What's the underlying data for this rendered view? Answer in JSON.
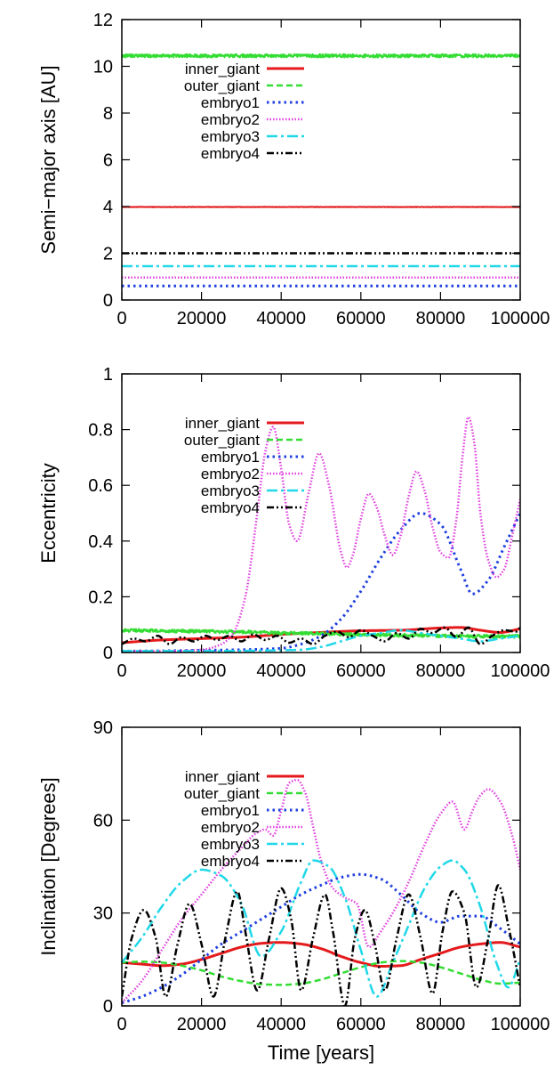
{
  "chart_data": [
    {
      "type": "line",
      "ylabel": "Semi−major axis [AU]",
      "xlabel": "",
      "xlim": [
        0,
        100000
      ],
      "ylim": [
        0,
        12
      ],
      "xticks": [
        0,
        20000,
        40000,
        60000,
        80000,
        100000
      ],
      "xtick_labels": [
        "0",
        "20000",
        "40000",
        "60000",
        "80000",
        "100000"
      ],
      "yticks": [
        0,
        2,
        4,
        6,
        8,
        10,
        12
      ],
      "ytick_labels": [
        "0",
        "2",
        "4",
        "6",
        "8",
        "10",
        "12"
      ],
      "legend_position": "top-left",
      "series": [
        {
          "name": "inner_giant",
          "color": "#e41a1c",
          "dash": "solid",
          "noise": 0.01,
          "x": [
            0,
            100000
          ],
          "y": [
            3.98,
            3.98
          ]
        },
        {
          "name": "outer_giant",
          "color": "#33dd33",
          "dash": "dashed",
          "noise": 0.07,
          "x": [
            0,
            100000
          ],
          "y": [
            10.45,
            10.45
          ]
        },
        {
          "name": "embryo1",
          "color": "#1f3fe0",
          "dash": "dotted",
          "noise": 0,
          "x": [
            0,
            100000
          ],
          "y": [
            0.6,
            0.6
          ]
        },
        {
          "name": "embryo2",
          "color": "#e040e0",
          "dash": "dotted-fine",
          "noise": 0,
          "x": [
            0,
            100000
          ],
          "y": [
            0.96,
            0.96
          ]
        },
        {
          "name": "embryo3",
          "color": "#20d8e8",
          "dash": "dashdot",
          "noise": 0,
          "x": [
            0,
            100000
          ],
          "y": [
            1.45,
            1.45
          ]
        },
        {
          "name": "embryo4",
          "color": "#000000",
          "dash": "dashdotdot",
          "noise": 0,
          "x": [
            0,
            100000
          ],
          "y": [
            2.0,
            2.0
          ]
        }
      ]
    },
    {
      "type": "line",
      "ylabel": "Eccentricity",
      "xlabel": "",
      "xlim": [
        0,
        100000
      ],
      "ylim": [
        0,
        1
      ],
      "xticks": [
        0,
        20000,
        40000,
        60000,
        80000,
        100000
      ],
      "xtick_labels": [
        "0",
        "20000",
        "40000",
        "60000",
        "80000",
        "100000"
      ],
      "yticks": [
        0,
        0.2,
        0.4,
        0.6,
        0.8,
        1
      ],
      "ytick_labels": [
        "0",
        "0.2",
        "0.4",
        "0.6",
        "0.8",
        "1"
      ],
      "legend_position": "top-left",
      "series": [
        {
          "name": "inner_giant",
          "color": "#e41a1c",
          "dash": "solid",
          "noise": 0,
          "x": [
            0,
            10000,
            20000,
            30000,
            40000,
            50000,
            60000,
            70000,
            80000,
            85000,
            90000,
            95000,
            100000
          ],
          "y": [
            0.035,
            0.045,
            0.05,
            0.055,
            0.065,
            0.072,
            0.078,
            0.08,
            0.088,
            0.09,
            0.08,
            0.072,
            0.085
          ]
        },
        {
          "name": "outer_giant",
          "color": "#33dd33",
          "dash": "dashed",
          "noise": 0.006,
          "x": [
            0,
            10000,
            20000,
            30000,
            40000,
            50000,
            60000,
            70000,
            80000,
            90000,
            100000
          ],
          "y": [
            0.08,
            0.078,
            0.076,
            0.074,
            0.07,
            0.068,
            0.064,
            0.062,
            0.06,
            0.058,
            0.058
          ]
        },
        {
          "name": "embryo1",
          "color": "#1f3fe0",
          "dash": "dotted",
          "noise": 0,
          "x": [
            0,
            10000,
            20000,
            30000,
            40000,
            45000,
            50000,
            55000,
            60000,
            65000,
            70000,
            75000,
            80000,
            85000,
            88000,
            92000,
            96000,
            100000
          ],
          "y": [
            0.005,
            0.006,
            0.008,
            0.01,
            0.015,
            0.03,
            0.06,
            0.12,
            0.22,
            0.34,
            0.44,
            0.5,
            0.46,
            0.3,
            0.21,
            0.26,
            0.38,
            0.5
          ]
        },
        {
          "name": "embryo2",
          "color": "#e040e0",
          "dash": "dotted-fine",
          "noise": 0,
          "x": [
            0,
            10000,
            20000,
            25000,
            28000,
            31000,
            34000,
            36000,
            38000,
            40000,
            42000,
            44000,
            47000,
            49500,
            52000,
            55000,
            56500,
            58000,
            60000,
            62000,
            64000,
            66000,
            68000,
            70000,
            72000,
            74000,
            76000,
            78000,
            80000,
            82000,
            84000,
            85500,
            87000,
            88500,
            90000,
            92000,
            94000,
            96000,
            98000,
            100000
          ],
          "y": [
            0.005,
            0.005,
            0.01,
            0.03,
            0.07,
            0.2,
            0.5,
            0.72,
            0.81,
            0.66,
            0.46,
            0.4,
            0.58,
            0.715,
            0.6,
            0.36,
            0.305,
            0.35,
            0.48,
            0.57,
            0.52,
            0.42,
            0.35,
            0.42,
            0.56,
            0.65,
            0.58,
            0.45,
            0.36,
            0.34,
            0.48,
            0.7,
            0.845,
            0.75,
            0.5,
            0.33,
            0.27,
            0.3,
            0.42,
            0.55
          ]
        },
        {
          "name": "embryo3",
          "color": "#20d8e8",
          "dash": "dashdot",
          "noise": 0,
          "x": [
            0,
            10000,
            20000,
            30000,
            40000,
            45000,
            50000,
            55000,
            60000,
            65000,
            70000,
            75000,
            80000,
            85000,
            90000,
            95000,
            100000
          ],
          "y": [
            0.005,
            0.005,
            0.005,
            0.006,
            0.008,
            0.01,
            0.02,
            0.04,
            0.06,
            0.07,
            0.08,
            0.07,
            0.06,
            0.05,
            0.04,
            0.05,
            0.06
          ]
        },
        {
          "name": "embryo4",
          "color": "#000000",
          "dash": "dashdotdot",
          "noise": 0,
          "x": [
            0,
            3000,
            6000,
            9000,
            12000,
            15000,
            18000,
            21000,
            24000,
            27000,
            30000,
            33000,
            36000,
            39000,
            42000,
            45000,
            48000,
            51000,
            54000,
            57000,
            60000,
            63000,
            66000,
            69000,
            72000,
            75000,
            78000,
            81000,
            84000,
            87000,
            90000,
            93000,
            96000,
            99000,
            100000
          ],
          "y": [
            0.03,
            0.05,
            0.04,
            0.06,
            0.03,
            0.055,
            0.04,
            0.06,
            0.045,
            0.06,
            0.04,
            0.065,
            0.045,
            0.06,
            0.035,
            0.05,
            0.03,
            0.06,
            0.075,
            0.055,
            0.08,
            0.06,
            0.04,
            0.07,
            0.05,
            0.085,
            0.07,
            0.09,
            0.055,
            0.09,
            0.03,
            0.06,
            0.08,
            0.075,
            0.09
          ]
        }
      ]
    },
    {
      "type": "line",
      "ylabel": "Inclination [Degrees]",
      "xlabel": "Time [years]",
      "xlim": [
        0,
        100000
      ],
      "ylim": [
        0,
        90
      ],
      "xticks": [
        0,
        20000,
        40000,
        60000,
        80000,
        100000
      ],
      "xtick_labels": [
        "0",
        "20000",
        "40000",
        "60000",
        "80000",
        "100000"
      ],
      "yticks": [
        0,
        30,
        60,
        90
      ],
      "ytick_labels": [
        "0",
        "30",
        "60",
        "90"
      ],
      "legend_position": "top-left",
      "series": [
        {
          "name": "inner_giant",
          "color": "#e41a1c",
          "dash": "solid",
          "noise": 0,
          "x": [
            0,
            5000,
            10000,
            15000,
            20000,
            25000,
            30000,
            35000,
            40000,
            45000,
            50000,
            55000,
            60000,
            65000,
            70000,
            75000,
            80000,
            85000,
            90000,
            95000,
            100000
          ],
          "y": [
            14,
            13.5,
            13,
            13.5,
            15,
            17,
            19,
            20.2,
            20.5,
            20,
            18.5,
            16,
            14,
            12.8,
            13,
            15,
            17,
            19,
            20,
            20.5,
            19
          ]
        },
        {
          "name": "outer_giant",
          "color": "#33dd33",
          "dash": "dashed",
          "noise": 0,
          "x": [
            0,
            5000,
            10000,
            15000,
            20000,
            25000,
            30000,
            35000,
            40000,
            45000,
            50000,
            55000,
            60000,
            65000,
            70000,
            75000,
            80000,
            85000,
            90000,
            95000,
            100000
          ],
          "y": [
            14,
            14.3,
            14,
            13,
            11.5,
            9.5,
            8,
            7,
            6.8,
            7.2,
            8.5,
            10.5,
            12.5,
            14,
            14.5,
            14,
            12.5,
            10.5,
            8.5,
            7.2,
            7.5
          ]
        },
        {
          "name": "embryo1",
          "color": "#1f3fe0",
          "dash": "dotted",
          "noise": 0,
          "x": [
            0,
            5000,
            10000,
            15000,
            20000,
            25000,
            30000,
            35000,
            40000,
            45000,
            50000,
            55000,
            60000,
            65000,
            70000,
            75000,
            80000,
            85000,
            90000,
            95000,
            100000
          ],
          "y": [
            1,
            3,
            6,
            10,
            15,
            20,
            24,
            28,
            32,
            36,
            39,
            41.5,
            42.5,
            41,
            36,
            30,
            27,
            29,
            29,
            25,
            20
          ]
        },
        {
          "name": "embryo2",
          "color": "#e040e0",
          "dash": "dotted-fine",
          "noise": 0,
          "x": [
            0,
            5000,
            10000,
            15000,
            20000,
            25000,
            30000,
            34000,
            36000,
            38000,
            40000,
            42000,
            44000,
            46000,
            48000,
            50000,
            53000,
            56000,
            59000,
            62000,
            65000,
            68000,
            72000,
            76000,
            80000,
            83000,
            86000,
            88000,
            90000,
            92000,
            95000,
            98000,
            100000
          ],
          "y": [
            1,
            8,
            18,
            28,
            36,
            44,
            51,
            56,
            57,
            55,
            63,
            72,
            73,
            69,
            58,
            47,
            38,
            35,
            33,
            19,
            24,
            30,
            40,
            52,
            62,
            66,
            57,
            63,
            68,
            70,
            66,
            55,
            44
          ]
        },
        {
          "name": "embryo3",
          "color": "#20d8e8",
          "dash": "dashdot",
          "noise": 0,
          "x": [
            0,
            5000,
            10000,
            15000,
            20000,
            25000,
            30000,
            35000,
            40000,
            45000,
            48000,
            52000,
            56000,
            60000,
            64000,
            68000,
            72000,
            76000,
            80000,
            83000,
            86000,
            90000,
            94000,
            97000,
            100000
          ],
          "y": [
            14,
            22,
            32,
            40,
            44,
            42,
            33,
            16,
            24,
            40,
            47,
            45,
            35,
            18,
            3,
            14,
            26,
            38,
            45,
            47,
            44,
            32,
            14,
            6,
            15
          ]
        },
        {
          "name": "embryo4",
          "color": "#000000",
          "dash": "dashdotdot",
          "noise": 0,
          "x": [
            0,
            2500,
            5500,
            8500,
            11000,
            14000,
            17000,
            20000,
            23000,
            26000,
            29000,
            31000,
            34000,
            37000,
            40000,
            42500,
            45000,
            48000,
            51000,
            53000,
            56000,
            58500,
            61000,
            63500,
            66000,
            69000,
            72000,
            75000,
            78000,
            80500,
            83000,
            86000,
            89000,
            92000,
            94500,
            97000,
            100000
          ],
          "y": [
            3,
            22,
            31,
            22,
            3,
            20,
            33,
            20,
            3,
            22,
            37,
            24,
            5,
            22,
            38,
            28,
            5,
            22,
            36,
            24,
            0,
            22,
            31,
            20,
            5,
            22,
            36,
            22,
            4,
            24,
            37,
            30,
            6,
            22,
            39,
            26,
            6
          ]
        }
      ]
    }
  ]
}
